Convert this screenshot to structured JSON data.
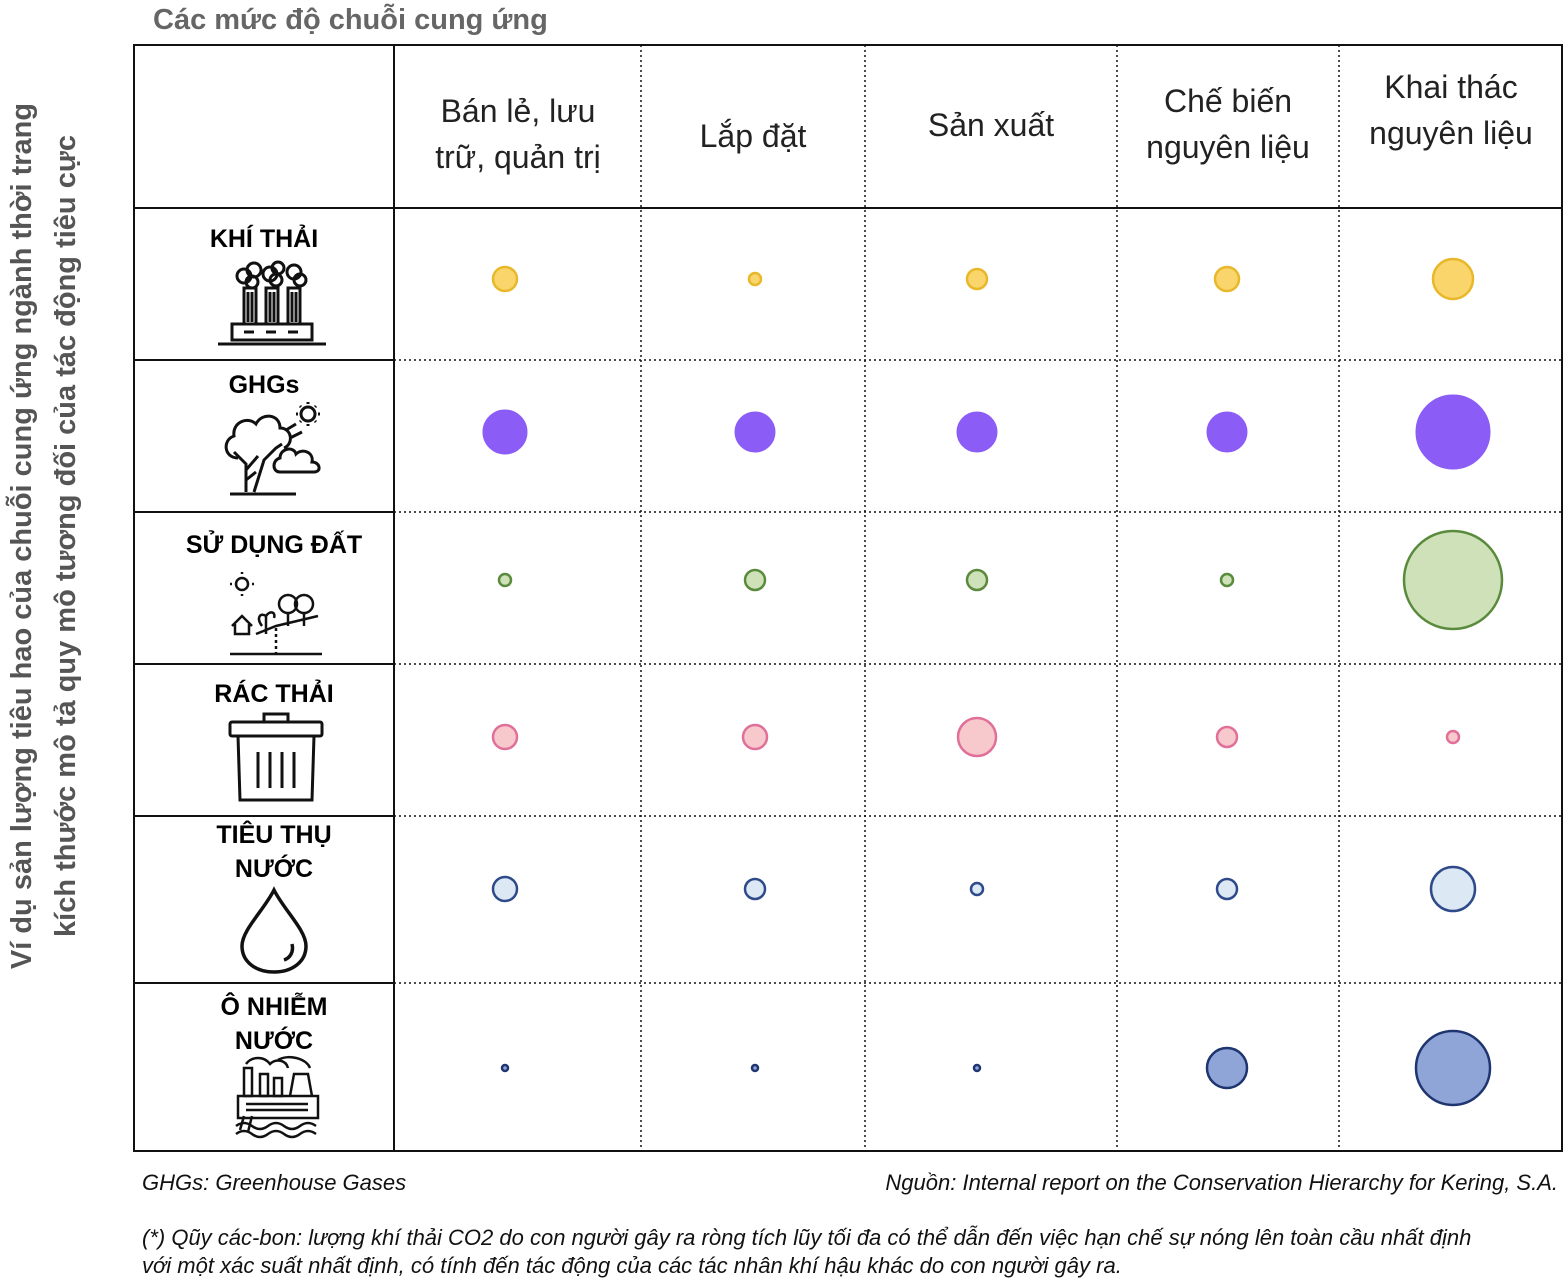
{
  "chart_data": {
    "type": "bubble-matrix",
    "title": "Các mức độ chuỗi cung ứng",
    "ylabel_lines": [
      "Ví dụ sản lượng tiêu hao của chuỗi cung ứng ngành thời trang",
      "kích thước mô tả quy mô tương đối của tác động tiêu cực"
    ],
    "columns": [
      "Bán lẻ, lưu trữ, quản trị",
      "Lắp đặt",
      "Sản xuất",
      "Chế biến nguyên liệu",
      "Khai thác nguyên liệu"
    ],
    "series": [
      {
        "name": "KHÍ THẢI",
        "icon": "factory-smoke-icon",
        "fill": "#f9d56b",
        "stroke": "#e8b82a",
        "values": [
          12,
          6,
          10,
          12,
          20
        ]
      },
      {
        "name": "GHGs",
        "icon": "cloud-sun-icon",
        "fill": "#8b5cf6",
        "stroke": "#8b5cf6",
        "values": [
          22,
          20,
          20,
          20,
          37
        ]
      },
      {
        "name": "SỬ DỤNG ĐẤT",
        "icon": "land-house-tree-icon",
        "fill": "#cfe1b9",
        "stroke": "#5a8a3c",
        "values": [
          6,
          10,
          10,
          6,
          49
        ]
      },
      {
        "name": "RÁC THẢI",
        "icon": "trash-can-icon",
        "fill": "#f8c9cc",
        "stroke": "#e0709a",
        "values": [
          12,
          12,
          19,
          10,
          6
        ]
      },
      {
        "name": "TIÊU THỤ NƯỚC",
        "icon": "water-drop-icon",
        "fill": "#dde8f5",
        "stroke": "#2e4a8a",
        "values": [
          12,
          10,
          6,
          10,
          22
        ]
      },
      {
        "name": "Ô NHIỄM NƯỚC",
        "icon": "water-pollution-icon",
        "fill": "#8fa5d8",
        "stroke": "#1f3570",
        "values": [
          3,
          3,
          3,
          20,
          37
        ]
      }
    ]
  },
  "row_labels": {
    "r0": [
      "KHÍ THẢI"
    ],
    "r1": [
      "GHGs"
    ],
    "r2": [
      "SỬ DỤNG ĐẤT"
    ],
    "r3": [
      "RÁC THẢI"
    ],
    "r4": [
      "TIÊU THỤ",
      "NƯỚC"
    ],
    "r5": [
      "Ô NHIỄM",
      "NƯỚC"
    ]
  },
  "col_header_lines": {
    "c0": [
      "Bán lẻ, lưu",
      "trữ, quản trị"
    ],
    "c1": [
      "Lắp đặt"
    ],
    "c2": [
      "Sản xuất"
    ],
    "c3": [
      "Chế biến",
      "nguyên liệu"
    ],
    "c4": [
      "Khai thác",
      "nguyên liệu"
    ]
  },
  "footnotes": {
    "ghgs": "GHGs: Greenhouse Gases",
    "source": "Nguồn: Internal report on the Conservation Hierarchy for Kering, S.A.",
    "carbon_line1": "(*) Qũy các-bon: lượng khí thải CO2 do con người gây ra ròng tích lũy tối đa có thể dẫn đến việc hạn chế sự nóng lên toàn cầu nhất định",
    "carbon_line2": "với một xác suất nhất định, có tính đến tác động của các tác nhân khí hậu khác do con người gây ra."
  }
}
